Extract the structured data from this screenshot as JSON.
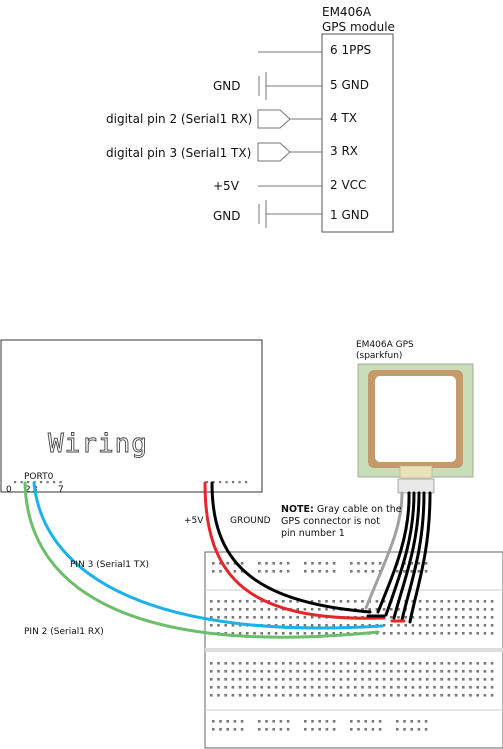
{
  "module": {
    "title_line1": "EM406A",
    "title_line2": "GPS module",
    "pins": [
      "6 1PPS",
      "5 GND",
      "4 TX",
      "3 RX",
      "2 VCC",
      "1 GND"
    ]
  },
  "left_labels": {
    "gnd_top": "GND",
    "pin2": "digital pin 2 (Serial1 RX)",
    "pin3": "digital pin 3 (Serial1 TX)",
    "plus5v": "+5V",
    "gnd_bottom": "GND"
  },
  "board": {
    "logo": "Wiring",
    "port_label": "PORT0",
    "port_numbers": [
      "0",
      "2",
      "3",
      "7"
    ]
  },
  "gps": {
    "caption_line1": "EM406A GPS",
    "caption_line2": "(sparkfun)"
  },
  "wires": {
    "plus5v": "+5V",
    "ground": "GROUND",
    "pin3": "PIN 3 (Serial1 TX)",
    "pin2": "PIN 2 (Serial1 RX)"
  },
  "note": {
    "bold": "NOTE:",
    "line1": " Gray cable on the",
    "line2": "GPS connector is not",
    "line3": "pin number 1"
  },
  "colors": {
    "wire_gray": "#a0a0a0",
    "wire_black": "#000000",
    "wire_red": "#e4262a",
    "wire_cyan": "#1ab2e8",
    "wire_green": "#6cbf6a",
    "gps_board": "#c8ddb8",
    "gps_antenna_border": "#c49a6c"
  }
}
